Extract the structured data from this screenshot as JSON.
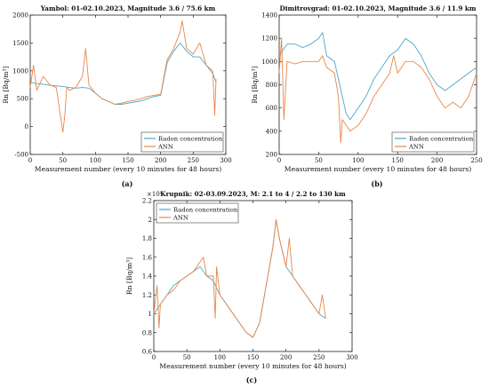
{
  "chart_data": [
    {
      "type": "line",
      "panel_label": "(a)",
      "title": "Yambol: 01-02.10.2023, Magnitude 3.6 / 75.6 km",
      "xlabel": "Measurement number (every 10 minutes for 48 hours)",
      "ylabel": "Rn [Bq/m³]",
      "xlim": [
        0,
        300
      ],
      "ylim": [
        -500,
        2000
      ],
      "xticks": [
        "0",
        "50",
        "100",
        "150",
        "200",
        "250",
        "300"
      ],
      "yticks": [
        "-500",
        "0",
        "500",
        "1000",
        "1500",
        "2000"
      ],
      "legend_position": "lower-right",
      "series": [
        {
          "name": "Radon concentration",
          "x": [
            0,
            10,
            20,
            30,
            40,
            50,
            60,
            70,
            80,
            90,
            100,
            110,
            120,
            130,
            140,
            150,
            160,
            170,
            180,
            190,
            200,
            210,
            220,
            230,
            240,
            250,
            260,
            270,
            280,
            285
          ],
          "values": [
            800,
            770,
            760,
            740,
            730,
            720,
            700,
            690,
            700,
            690,
            600,
            500,
            450,
            400,
            400,
            420,
            440,
            460,
            500,
            540,
            560,
            1150,
            1350,
            1500,
            1350,
            1250,
            1250,
            1100,
            950,
            800
          ]
        },
        {
          "name": "ANN",
          "x": [
            0,
            5,
            10,
            20,
            30,
            40,
            50,
            53,
            56,
            60,
            70,
            80,
            85,
            90,
            100,
            110,
            120,
            130,
            140,
            150,
            160,
            170,
            180,
            190,
            200,
            210,
            220,
            230,
            233,
            240,
            250,
            260,
            270,
            280,
            283,
            285
          ],
          "values": [
            700,
            1100,
            650,
            900,
            750,
            700,
            -100,
            200,
            700,
            650,
            700,
            900,
            1400,
            750,
            600,
            500,
            450,
            400,
            420,
            450,
            470,
            500,
            540,
            560,
            580,
            1200,
            1400,
            1700,
            1900,
            1400,
            1300,
            1500,
            1100,
            1000,
            200,
            850
          ]
        }
      ]
    },
    {
      "type": "line",
      "panel_label": "(b)",
      "title": "Dimitrovgrad: 01-02.10.2023, Magnitude 3.6 / 11.9 km",
      "xlabel": "Measurement number (every 10 minutes for 48 hours)",
      "ylabel": "Rn [Bq/m³]",
      "xlim": [
        0,
        250
      ],
      "ylim": [
        200,
        1400
      ],
      "xticks": [
        "0",
        "50",
        "100",
        "150",
        "200",
        "250"
      ],
      "yticks": [
        "200",
        "400",
        "600",
        "800",
        "1000",
        "1200",
        "1400"
      ],
      "legend_position": "lower-right",
      "series": [
        {
          "name": "Radon concentration",
          "x": [
            0,
            10,
            20,
            30,
            40,
            50,
            55,
            60,
            70,
            80,
            85,
            90,
            100,
            110,
            120,
            130,
            140,
            150,
            160,
            170,
            180,
            190,
            200,
            210,
            220,
            230,
            240,
            250
          ],
          "values": [
            1050,
            1150,
            1150,
            1120,
            1150,
            1200,
            1250,
            1050,
            1000,
            700,
            550,
            500,
            600,
            700,
            850,
            950,
            1050,
            1100,
            1200,
            1150,
            1050,
            900,
            800,
            750,
            800,
            850,
            900,
            950
          ]
        },
        {
          "name": "ANN",
          "x": [
            0,
            3,
            6,
            10,
            20,
            30,
            40,
            50,
            55,
            60,
            70,
            75,
            78,
            80,
            90,
            100,
            110,
            120,
            130,
            140,
            145,
            150,
            160,
            170,
            180,
            190,
            200,
            210,
            220,
            230,
            240,
            250
          ],
          "values": [
            900,
            1200,
            500,
            1000,
            980,
            1000,
            1000,
            1000,
            1050,
            950,
            900,
            700,
            300,
            500,
            400,
            450,
            550,
            700,
            800,
            900,
            1050,
            900,
            1000,
            1000,
            950,
            850,
            700,
            600,
            650,
            600,
            700,
            900
          ]
        }
      ]
    },
    {
      "type": "line",
      "panel_label": "(c)",
      "title": "Krupnik: 02-03.09.2023, M: 2.1 to 4 / 2.2 to 130 km",
      "axis_multiplier": "×10⁴",
      "xlabel": "Measurement number (every 10 minutes for 48 hours)",
      "ylabel": "Rn [Bq/m³]",
      "xlim": [
        0,
        300
      ],
      "ylim": [
        0.6,
        2.2
      ],
      "xticks": [
        "0",
        "50",
        "100",
        "150",
        "200",
        "250",
        "300"
      ],
      "yticks": [
        "0.6",
        "0.8",
        "1",
        "1.2",
        "1.4",
        "1.6",
        "1.8",
        "2",
        "2.2"
      ],
      "legend_position": "top-left",
      "series": [
        {
          "name": "Radon concentration",
          "x": [
            0,
            10,
            20,
            30,
            40,
            50,
            60,
            70,
            80,
            90,
            100,
            110,
            120,
            130,
            140,
            150,
            160,
            170,
            180,
            185,
            190,
            200,
            210,
            220,
            230,
            240,
            250,
            260
          ],
          "values": [
            1.0,
            1.1,
            1.2,
            1.3,
            1.35,
            1.4,
            1.45,
            1.5,
            1.4,
            1.35,
            1.2,
            1.1,
            1.0,
            0.9,
            0.8,
            0.75,
            0.9,
            1.3,
            1.7,
            2.0,
            1.8,
            1.5,
            1.4,
            1.3,
            1.2,
            1.1,
            1.0,
            0.95
          ]
        },
        {
          "name": "ANN",
          "x": [
            0,
            5,
            8,
            10,
            20,
            30,
            40,
            50,
            60,
            70,
            75,
            80,
            90,
            93,
            95,
            100,
            110,
            120,
            130,
            140,
            150,
            160,
            170,
            180,
            185,
            190,
            200,
            205,
            210,
            220,
            230,
            240,
            250,
            255,
            260
          ],
          "values": [
            1.0,
            1.3,
            0.85,
            1.1,
            1.2,
            1.25,
            1.35,
            1.4,
            1.45,
            1.55,
            1.6,
            1.4,
            1.4,
            0.95,
            1.5,
            1.2,
            1.1,
            1.0,
            0.9,
            0.8,
            0.75,
            0.9,
            1.3,
            1.7,
            2.0,
            1.8,
            1.5,
            1.8,
            1.4,
            1.3,
            1.2,
            1.1,
            1.0,
            1.2,
            0.95
          ]
        }
      ]
    }
  ],
  "colors": {
    "radon": "#4aa8c8",
    "ann": "#e8874a",
    "axis": "#222222",
    "grid": "#e6e6e6"
  }
}
